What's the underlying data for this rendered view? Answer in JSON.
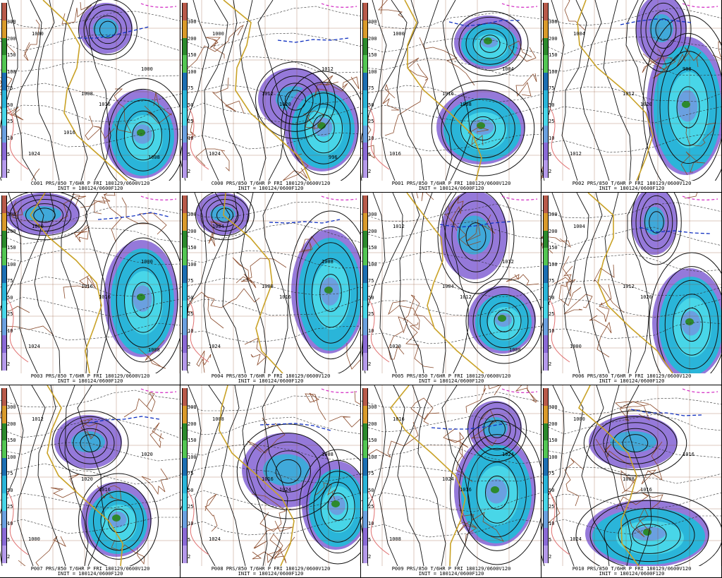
{
  "colorbar": {
    "ticks": [
      "300",
      "200",
      "150",
      "100",
      "75",
      "50",
      "25",
      "10",
      "5",
      "2"
    ],
    "colors": [
      "#b85a4a",
      "#d99a2b",
      "#2c8a2c",
      "#53c653",
      "#1c6fb3",
      "#2ab5d9",
      "#48d6e8",
      "#6aa0e0",
      "#8a6ad6",
      "#b59aeb"
    ]
  },
  "panels": [
    {
      "id": "C001",
      "caption": "C001 PRS/850 T/6HR P FRI 180129/0600V120",
      "init": "INIT = 180124/0600F120",
      "isobars": [
        "1000",
        "1008",
        "1016",
        "1024",
        "1000",
        "1008",
        "1016"
      ],
      "high_label": ""
    },
    {
      "id": "C000",
      "caption": "C000 PRS/850 T/6HR P FRI 180129/0600V120",
      "init": "INIT = 180124/0600F120",
      "isobars": [
        "1000",
        "1012",
        "1020",
        "1024",
        "1012",
        "996"
      ],
      "high_label": ""
    },
    {
      "id": "P001",
      "caption": "P001 PRS/850 T/6HR P FRI 180129/0600V120",
      "init": "INIT = 180124/0600F120",
      "isobars": [
        "1000",
        "1016",
        "1008",
        "1016",
        "1004"
      ],
      "high_label": ""
    },
    {
      "id": "P002",
      "caption": "P002 PRS/850 T/6HR P FRI 180129/0600V120",
      "init": "INIT = 180124/0600F120",
      "isobars": [
        "1004",
        "1012",
        "1020",
        "1012",
        "988"
      ],
      "high_label": ""
    },
    {
      "id": "P003",
      "caption": "P003 PRS/850 T/6HR P FRI 180129/0600V120",
      "init": "INIT = 180124/0600F120",
      "isobars": [
        "1000",
        "1016",
        "1016",
        "1024",
        "1000",
        "1008"
      ],
      "high_label": ""
    },
    {
      "id": "P004",
      "caption": "P004 PRS/850 T/6HR P FRI 180129/0600V120",
      "init": "INIT = 180124/0600F120",
      "isobars": [
        "1004",
        "1008",
        "1016",
        "1024",
        "1008"
      ],
      "high_label": ""
    },
    {
      "id": "P005",
      "caption": "P005 PRS/850 T/6HR P FRI 180129/0600V120",
      "init": "INIT = 180124/0600F120",
      "isobars": [
        "1012",
        "1004",
        "1012",
        "1020",
        "1012",
        "1008"
      ],
      "high_label": ""
    },
    {
      "id": "P006",
      "caption": "P006 PRS/850 T/6HR P FRI 180129/0600V120",
      "init": "INIT = 180124/0600F120",
      "isobars": [
        "1004",
        "1012",
        "1020",
        "1000"
      ],
      "high_label": ""
    },
    {
      "id": "P007",
      "caption": "P007 PRS/850 T/6HR P FRI 180129/0600V120",
      "init": "INIT = 180124/0600F120",
      "isobars": [
        "1012",
        "1020",
        "1016",
        "1000",
        "1020"
      ],
      "high_label": ""
    },
    {
      "id": "P008",
      "caption": "P008 PRS/850 T/6HR P FRI 180129/0600V120",
      "init": "INIT = 180124/0600F120",
      "isobars": [
        "1008",
        "1016",
        "1024",
        "1024",
        "1008"
      ],
      "high_label": ""
    },
    {
      "id": "P009",
      "caption": "P009 PRS/850 T/6HR P FRI 180129/0600V120",
      "init": "INIT = 180124/0600F120",
      "isobars": [
        "1016",
        "1024",
        "1016",
        "1008",
        "1024"
      ],
      "high_label": ""
    },
    {
      "id": "P010",
      "caption": "P010 PRS/850 T/6HR P FRI 180129/0600V120",
      "init": "INIT = 180124/0600F120",
      "isobars": [
        "1000",
        "1008",
        "1016",
        "1024",
        "1016"
      ],
      "high_label": ""
    }
  ]
}
